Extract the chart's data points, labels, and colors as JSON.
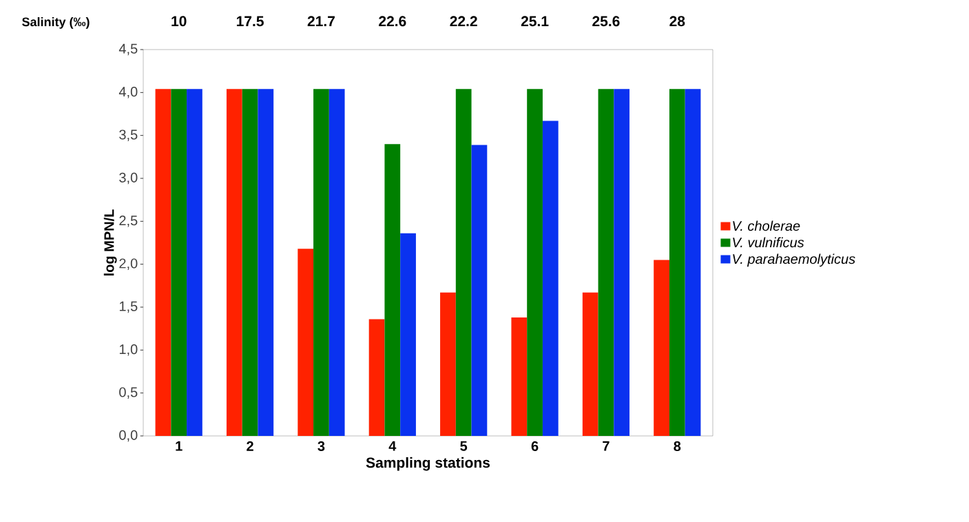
{
  "chart_data": {
    "type": "bar",
    "xlabel": "Sampling stations",
    "ylabel": "log MPN/L",
    "categories": [
      "1",
      "2",
      "3",
      "4",
      "5",
      "6",
      "7",
      "8"
    ],
    "series": [
      {
        "name": "V. cholerae",
        "color": "#ff2200",
        "values": [
          4.04,
          4.04,
          2.18,
          1.36,
          1.67,
          1.38,
          1.67,
          2.05
        ]
      },
      {
        "name": "V. vulnificus",
        "color": "#008000",
        "values": [
          4.04,
          4.04,
          4.04,
          3.4,
          4.04,
          4.04,
          4.04,
          4.04
        ]
      },
      {
        "name": "V. parahaemolyticus",
        "color": "#0a32f0",
        "values": [
          4.04,
          4.04,
          4.04,
          2.36,
          3.39,
          3.67,
          4.04,
          4.04
        ]
      }
    ],
    "ylim": [
      0,
      4.5
    ],
    "yticks": [
      {
        "value": 0,
        "label": "0,0"
      },
      {
        "value": 0.5,
        "label": "0,5"
      },
      {
        "value": 1,
        "label": "1,0"
      },
      {
        "value": 1.5,
        "label": "1,5"
      },
      {
        "value": 2,
        "label": "2,0"
      },
      {
        "value": 2.5,
        "label": "2,5"
      },
      {
        "value": 3,
        "label": "3,0"
      },
      {
        "value": 3.5,
        "label": "3,5"
      },
      {
        "value": 4,
        "label": "4,0"
      },
      {
        "value": 4.5,
        "label": "4,5"
      }
    ],
    "legend": "right",
    "grid": false,
    "annotations": [
      "Salinity (‰)",
      "10",
      "17.5",
      "21.7",
      "22.6",
      "22.2",
      "25.1",
      "25.6",
      "28"
    ]
  }
}
